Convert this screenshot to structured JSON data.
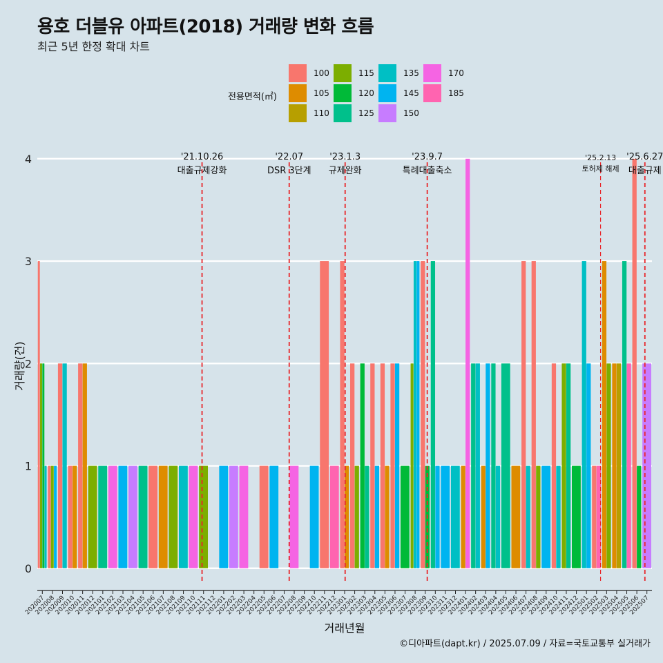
{
  "title": "용호 더블유 아파트(2018) 거래량 변화 흐름",
  "subtitle": "최근 5년 한정 확대 차트",
  "caption": "©디아파트(dapt.kr) / 2025.07.09 / 자료=국토교통부 실거래가",
  "legend": {
    "title": "전용면적(㎡)",
    "items": [
      {
        "label": "100",
        "color": "#f8766d"
      },
      {
        "label": "105",
        "color": "#de8c00"
      },
      {
        "label": "110",
        "color": "#b79f00"
      },
      {
        "label": "115",
        "color": "#7cae00"
      },
      {
        "label": "120",
        "color": "#00ba38"
      },
      {
        "label": "125",
        "color": "#00c08b"
      },
      {
        "label": "135",
        "color": "#00bfc4"
      },
      {
        "label": "145",
        "color": "#00b4f0"
      },
      {
        "label": "150",
        "color": "#c77cff"
      },
      {
        "label": "170",
        "color": "#f564e3"
      },
      {
        "label": "185",
        "color": "#ff64b0"
      }
    ]
  },
  "chart_data": {
    "type": "bar",
    "xlabel": "거래년월",
    "ylabel": "거래량(건)",
    "ylim": [
      -0.15,
      4.1
    ],
    "yticks": [
      0,
      1,
      2,
      3,
      4
    ],
    "grid": true,
    "months": [
      "202007",
      "202008",
      "202009",
      "202010",
      "202011",
      "202012",
      "202101",
      "202102",
      "202103",
      "202104",
      "202105",
      "202106",
      "202107",
      "202108",
      "202109",
      "202110",
      "202111",
      "202112",
      "202201",
      "202202",
      "202203",
      "202204",
      "202205",
      "202206",
      "202207",
      "202208",
      "202209",
      "202210",
      "202211",
      "202212",
      "202301",
      "202302",
      "202303",
      "202304",
      "202305",
      "202306",
      "202307",
      "202308",
      "202309",
      "202310",
      "202311",
      "202312",
      "202401",
      "202402",
      "202403",
      "202404",
      "202405",
      "202406",
      "202407",
      "202408",
      "202409",
      "202410",
      "202411",
      "202412",
      "202501",
      "202502",
      "202503",
      "202504",
      "202505",
      "202506",
      "202507"
    ],
    "bars": [
      {
        "month": "202007",
        "size": "100",
        "value": 3
      },
      {
        "month": "202007",
        "size": "115",
        "value": 2
      },
      {
        "month": "202007",
        "size": "120",
        "value": 2
      },
      {
        "month": "202007",
        "size": "135",
        "value": 1
      },
      {
        "month": "202008",
        "size": "100",
        "value": 1
      },
      {
        "month": "202008",
        "size": "115",
        "value": 1
      },
      {
        "month": "202008",
        "size": "145",
        "value": 1
      },
      {
        "month": "202009",
        "size": "100",
        "value": 2
      },
      {
        "month": "202009",
        "size": "135",
        "value": 2
      },
      {
        "month": "202010",
        "size": "100",
        "value": 1
      },
      {
        "month": "202010",
        "size": "105",
        "value": 1
      },
      {
        "month": "202011",
        "size": "100",
        "value": 2
      },
      {
        "month": "202011",
        "size": "105",
        "value": 2
      },
      {
        "month": "202012",
        "size": "115",
        "value": 1
      },
      {
        "month": "202101",
        "size": "125",
        "value": 1
      },
      {
        "month": "202102",
        "size": "170",
        "value": 1
      },
      {
        "month": "202103",
        "size": "145",
        "value": 1
      },
      {
        "month": "202104",
        "size": "150",
        "value": 1
      },
      {
        "month": "202105",
        "size": "125",
        "value": 1
      },
      {
        "month": "202106",
        "size": "100",
        "value": 1
      },
      {
        "month": "202107",
        "size": "105",
        "value": 1
      },
      {
        "month": "202108",
        "size": "115",
        "value": 1
      },
      {
        "month": "202109",
        "size": "135",
        "value": 1
      },
      {
        "month": "202110",
        "size": "170",
        "value": 1
      },
      {
        "month": "202111",
        "size": "115",
        "value": 1
      },
      {
        "month": "202201",
        "size": "145",
        "value": 1
      },
      {
        "month": "202202",
        "size": "150",
        "value": 1
      },
      {
        "month": "202203",
        "size": "170",
        "value": 1
      },
      {
        "month": "202205",
        "size": "100",
        "value": 1
      },
      {
        "month": "202206",
        "size": "145",
        "value": 1
      },
      {
        "month": "202208",
        "size": "170",
        "value": 1
      },
      {
        "month": "202210",
        "size": "145",
        "value": 1
      },
      {
        "month": "202211",
        "size": "100",
        "value": 3
      },
      {
        "month": "202212",
        "size": "185",
        "value": 1
      },
      {
        "month": "202301",
        "size": "100",
        "value": 3
      },
      {
        "month": "202301",
        "size": "105",
        "value": 1
      },
      {
        "month": "202302",
        "size": "100",
        "value": 2
      },
      {
        "month": "202302",
        "size": "115",
        "value": 1
      },
      {
        "month": "202303",
        "size": "120",
        "value": 2
      },
      {
        "month": "202303",
        "size": "125",
        "value": 1
      },
      {
        "month": "202304",
        "size": "100",
        "value": 2
      },
      {
        "month": "202304",
        "size": "145",
        "value": 1
      },
      {
        "month": "202305",
        "size": "100",
        "value": 2
      },
      {
        "month": "202305",
        "size": "105",
        "value": 1
      },
      {
        "month": "202306",
        "size": "100",
        "value": 2
      },
      {
        "month": "202306",
        "size": "145",
        "value": 2
      },
      {
        "month": "202307",
        "size": "120",
        "value": 1
      },
      {
        "month": "202308",
        "size": "115",
        "value": 2
      },
      {
        "month": "202308",
        "size": "135",
        "value": 3
      },
      {
        "month": "202308",
        "size": "145",
        "value": 3
      },
      {
        "month": "202309",
        "size": "100",
        "value": 3
      },
      {
        "month": "202309",
        "size": "120",
        "value": 1
      },
      {
        "month": "202310",
        "size": "125",
        "value": 3
      },
      {
        "month": "202310",
        "size": "145",
        "value": 1
      },
      {
        "month": "202311",
        "size": "145",
        "value": 1
      },
      {
        "month": "202312",
        "size": "135",
        "value": 1
      },
      {
        "month": "202401",
        "size": "105",
        "value": 1
      },
      {
        "month": "202401",
        "size": "170",
        "value": 4
      },
      {
        "month": "202402",
        "size": "125",
        "value": 2
      },
      {
        "month": "202402",
        "size": "135",
        "value": 2
      },
      {
        "month": "202403",
        "size": "105",
        "value": 1
      },
      {
        "month": "202403",
        "size": "145",
        "value": 2
      },
      {
        "month": "202404",
        "size": "125",
        "value": 2
      },
      {
        "month": "202404",
        "size": "135",
        "value": 1
      },
      {
        "month": "202405",
        "size": "125",
        "value": 2
      },
      {
        "month": "202406",
        "size": "105",
        "value": 1
      },
      {
        "month": "202407",
        "size": "100",
        "value": 3
      },
      {
        "month": "202407",
        "size": "135",
        "value": 1
      },
      {
        "month": "202408",
        "size": "100",
        "value": 3
      },
      {
        "month": "202408",
        "size": "115",
        "value": 1
      },
      {
        "month": "202409",
        "size": "145",
        "value": 1
      },
      {
        "month": "202410",
        "size": "100",
        "value": 2
      },
      {
        "month": "202410",
        "size": "135",
        "value": 1
      },
      {
        "month": "202411",
        "size": "115",
        "value": 2
      },
      {
        "month": "202411",
        "size": "125",
        "value": 2
      },
      {
        "month": "202412",
        "size": "120",
        "value": 1
      },
      {
        "month": "202501",
        "size": "135",
        "value": 3
      },
      {
        "month": "202501",
        "size": "145",
        "value": 2
      },
      {
        "month": "202502",
        "size": "100",
        "value": 1
      },
      {
        "month": "202502",
        "size": "185",
        "value": 1
      },
      {
        "month": "202503",
        "size": "105",
        "value": 3
      },
      {
        "month": "202503",
        "size": "115",
        "value": 2
      },
      {
        "month": "202504",
        "size": "105",
        "value": 2
      },
      {
        "month": "202504",
        "size": "110",
        "value": 2
      },
      {
        "month": "202505",
        "size": "185",
        "value": 2
      },
      {
        "month": "202505",
        "size": "125",
        "value": 3
      },
      {
        "month": "202506",
        "size": "100",
        "value": 4
      },
      {
        "month": "202506",
        "size": "120",
        "value": 1
      },
      {
        "month": "202507",
        "size": "150",
        "value": 2
      }
    ],
    "events": [
      {
        "date": "'21.10.26",
        "label": "대출규제강화",
        "pos": 15.85,
        "style": "major"
      },
      {
        "date": "'22.07",
        "label": "DSR 3단계",
        "pos": 24.5,
        "style": "major"
      },
      {
        "date": "'23.1.3",
        "label": "규제완화",
        "pos": 30.05,
        "style": "major"
      },
      {
        "date": "'23.9.7",
        "label": "특례대출축소",
        "pos": 38.2,
        "style": "major"
      },
      {
        "date": "'25.2.13",
        "label": "토허제 해제",
        "pos": 55.4,
        "style": "minor"
      },
      {
        "date": "'25.6.27",
        "label": "대출규제",
        "pos": 59.8,
        "style": "major"
      }
    ]
  }
}
